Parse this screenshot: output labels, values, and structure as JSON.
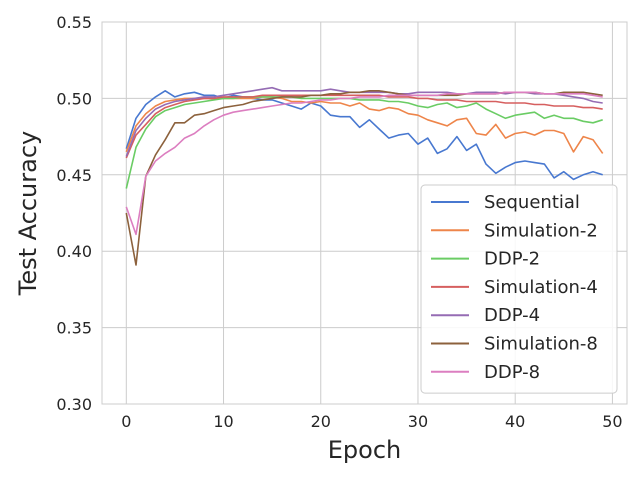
{
  "chart_data": {
    "type": "line",
    "title": "",
    "xlabel": "Epoch",
    "ylabel": "Test Accuracy",
    "xlim": [
      -2.5,
      51.5
    ],
    "ylim": [
      0.3,
      0.55
    ],
    "grid": true,
    "legend_position": "lower-right",
    "x_ticks": [
      0,
      10,
      20,
      30,
      40,
      50
    ],
    "x_tick_labels": [
      "0",
      "10",
      "20",
      "30",
      "40",
      "50"
    ],
    "y_ticks": [
      0.3,
      0.35,
      0.4,
      0.45,
      0.5,
      0.55
    ],
    "y_tick_labels": [
      "0.30",
      "0.35",
      "0.40",
      "0.45",
      "0.50",
      "0.55"
    ],
    "x": [
      0,
      1,
      2,
      3,
      4,
      5,
      6,
      7,
      8,
      9,
      10,
      11,
      12,
      13,
      14,
      15,
      16,
      17,
      18,
      19,
      20,
      21,
      22,
      23,
      24,
      25,
      26,
      27,
      28,
      29,
      30,
      31,
      32,
      33,
      34,
      35,
      36,
      37,
      38,
      39,
      40,
      41,
      42,
      43,
      44,
      45,
      46,
      47,
      48,
      49
    ],
    "series": [
      {
        "name": "Sequential",
        "color": "#4878d0",
        "values": [
          0.467,
          0.487,
          0.496,
          0.501,
          0.505,
          0.501,
          0.503,
          0.504,
          0.502,
          0.502,
          0.5,
          0.502,
          0.501,
          0.5,
          0.499,
          0.499,
          0.497,
          0.495,
          0.493,
          0.497,
          0.495,
          0.489,
          0.488,
          0.488,
          0.481,
          0.486,
          0.48,
          0.474,
          0.476,
          0.477,
          0.47,
          0.474,
          0.464,
          0.467,
          0.475,
          0.466,
          0.47,
          0.457,
          0.451,
          0.455,
          0.458,
          0.459,
          0.458,
          0.457,
          0.448,
          0.452,
          0.447,
          0.45,
          0.452,
          0.45
        ]
      },
      {
        "name": "Simulation-2",
        "color": "#ee854a",
        "values": [
          0.465,
          0.482,
          0.49,
          0.495,
          0.498,
          0.499,
          0.5,
          0.5,
          0.5,
          0.5,
          0.5,
          0.5,
          0.5,
          0.5,
          0.501,
          0.501,
          0.5,
          0.498,
          0.498,
          0.497,
          0.498,
          0.497,
          0.497,
          0.495,
          0.497,
          0.493,
          0.492,
          0.494,
          0.493,
          0.49,
          0.489,
          0.486,
          0.484,
          0.482,
          0.486,
          0.487,
          0.477,
          0.476,
          0.483,
          0.474,
          0.477,
          0.478,
          0.476,
          0.479,
          0.479,
          0.477,
          0.465,
          0.475,
          0.473,
          0.464
        ]
      },
      {
        "name": "DDP-2",
        "color": "#6acc64",
        "values": [
          0.441,
          0.468,
          0.48,
          0.488,
          0.492,
          0.494,
          0.496,
          0.497,
          0.498,
          0.499,
          0.5,
          0.5,
          0.501,
          0.501,
          0.501,
          0.501,
          0.501,
          0.501,
          0.5,
          0.5,
          0.5,
          0.5,
          0.5,
          0.5,
          0.499,
          0.499,
          0.499,
          0.498,
          0.498,
          0.497,
          0.495,
          0.494,
          0.496,
          0.497,
          0.494,
          0.495,
          0.497,
          0.493,
          0.49,
          0.487,
          0.489,
          0.49,
          0.491,
          0.487,
          0.489,
          0.487,
          0.487,
          0.485,
          0.484,
          0.486
        ]
      },
      {
        "name": "Simulation-4",
        "color": "#d65f5f",
        "values": [
          0.461,
          0.476,
          0.483,
          0.49,
          0.494,
          0.496,
          0.498,
          0.499,
          0.5,
          0.5,
          0.501,
          0.501,
          0.501,
          0.501,
          0.502,
          0.502,
          0.502,
          0.502,
          0.502,
          0.502,
          0.502,
          0.502,
          0.502,
          0.502,
          0.502,
          0.502,
          0.502,
          0.501,
          0.501,
          0.501,
          0.5,
          0.5,
          0.499,
          0.499,
          0.499,
          0.498,
          0.498,
          0.498,
          0.498,
          0.497,
          0.497,
          0.497,
          0.496,
          0.496,
          0.495,
          0.495,
          0.495,
          0.494,
          0.494,
          0.493
        ]
      },
      {
        "name": "DDP-4",
        "color": "#956cb4",
        "values": [
          0.462,
          0.479,
          0.487,
          0.493,
          0.496,
          0.498,
          0.499,
          0.5,
          0.501,
          0.501,
          0.502,
          0.503,
          0.504,
          0.505,
          0.506,
          0.507,
          0.505,
          0.505,
          0.505,
          0.505,
          0.505,
          0.506,
          0.505,
          0.504,
          0.504,
          0.504,
          0.504,
          0.504,
          0.503,
          0.503,
          0.504,
          0.504,
          0.504,
          0.504,
          0.503,
          0.503,
          0.504,
          0.504,
          0.504,
          0.503,
          0.504,
          0.504,
          0.503,
          0.503,
          0.503,
          0.502,
          0.501,
          0.5,
          0.498,
          0.497
        ]
      },
      {
        "name": "Simulation-8",
        "color": "#8c613c",
        "values": [
          0.425,
          0.391,
          0.449,
          0.463,
          0.473,
          0.484,
          0.484,
          0.489,
          0.49,
          0.492,
          0.494,
          0.495,
          0.496,
          0.498,
          0.499,
          0.5,
          0.501,
          0.501,
          0.501,
          0.502,
          0.502,
          0.503,
          0.503,
          0.504,
          0.504,
          0.505,
          0.505,
          0.504,
          0.503,
          0.502,
          0.502,
          0.502,
          0.502,
          0.502,
          0.502,
          0.503,
          0.503,
          0.503,
          0.503,
          0.504,
          0.504,
          0.504,
          0.504,
          0.503,
          0.503,
          0.504,
          0.504,
          0.504,
          0.503,
          0.502
        ]
      },
      {
        "name": "DDP-8",
        "color": "#dc7ec0",
        "values": [
          0.429,
          0.411,
          0.449,
          0.459,
          0.464,
          0.468,
          0.474,
          0.477,
          0.482,
          0.486,
          0.489,
          0.491,
          0.492,
          0.493,
          0.494,
          0.495,
          0.496,
          0.497,
          0.497,
          0.498,
          0.499,
          0.499,
          0.5,
          0.5,
          0.501,
          0.501,
          0.501,
          0.502,
          0.502,
          0.502,
          0.502,
          0.502,
          0.502,
          0.503,
          0.503,
          0.503,
          0.503,
          0.503,
          0.503,
          0.504,
          0.504,
          0.504,
          0.504,
          0.503,
          0.503,
          0.503,
          0.503,
          0.503,
          0.502,
          0.501
        ]
      }
    ]
  }
}
